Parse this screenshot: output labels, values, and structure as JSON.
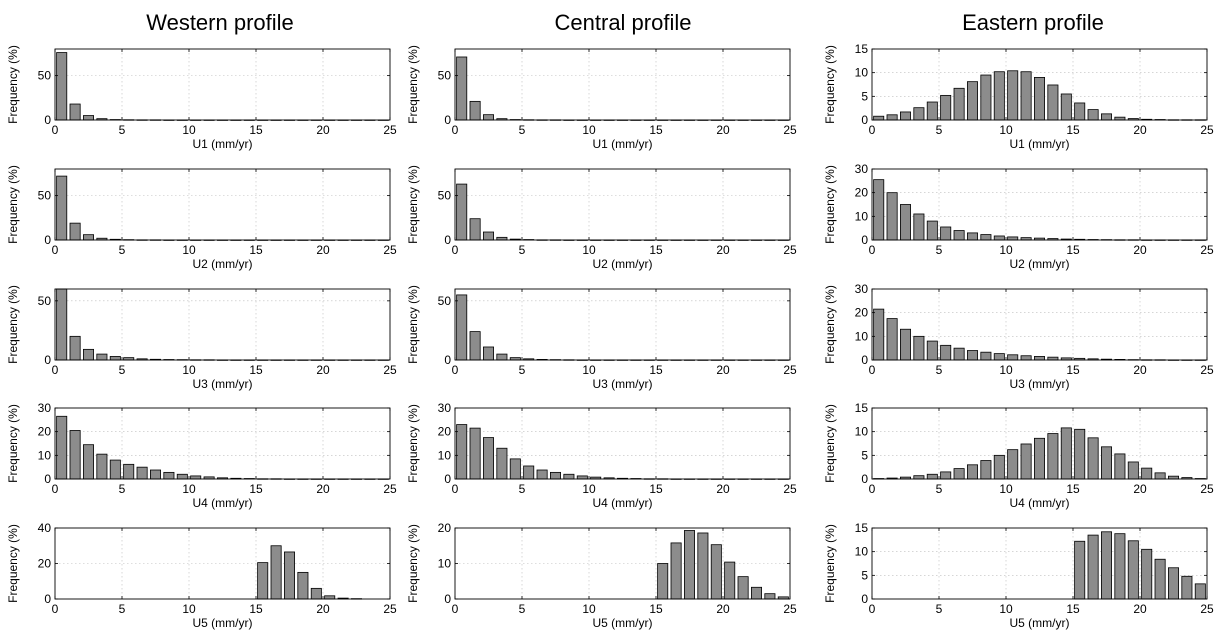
{
  "titles": [
    "Western profile",
    "Central profile",
    "Eastern profile"
  ],
  "chart_data": [
    {
      "type": "bar",
      "profile": "Western profile",
      "xlabel": "U1 (mm/yr)",
      "ylabel": "Frequency (%)",
      "xlim": [
        0,
        25
      ],
      "ylim": [
        0,
        80
      ],
      "yticks": [
        0,
        50
      ],
      "xticks": [
        0,
        5,
        10,
        15,
        20,
        25
      ],
      "grid": true,
      "bin_width": 1,
      "x": [
        0.5,
        1.5,
        2.5,
        3.5,
        4.5,
        5.5,
        6.5,
        7.5,
        8.5,
        9.5,
        10.5,
        11.5,
        12.5,
        13.5,
        14.5,
        15.5,
        16.5,
        17.5,
        18.5,
        19.5,
        20.5,
        21.5,
        22.5,
        23.5,
        24.5
      ],
      "values": [
        76,
        18,
        5,
        1.5,
        0.5,
        0.3,
        0.2,
        0.2,
        0.1,
        0.1,
        0.1,
        0.1,
        0.1,
        0.1,
        0.1,
        0.1,
        0.1,
        0.1,
        0.1,
        0.1,
        0.1,
        0.1,
        0.1,
        0.1,
        0.1
      ]
    },
    {
      "type": "bar",
      "profile": "Central profile",
      "xlabel": "U1 (mm/yr)",
      "ylabel": "Frequency (%)",
      "xlim": [
        0,
        25
      ],
      "ylim": [
        0,
        80
      ],
      "yticks": [
        0,
        50
      ],
      "xticks": [
        0,
        5,
        10,
        15,
        20,
        25
      ],
      "grid": true,
      "bin_width": 1,
      "x": [
        0.5,
        1.5,
        2.5,
        3.5,
        4.5,
        5.5,
        6.5,
        7.5,
        8.5,
        9.5,
        10.5,
        11.5,
        12.5,
        13.5,
        14.5,
        15.5,
        16.5,
        17.5,
        18.5,
        19.5,
        20.5,
        21.5,
        22.5,
        23.5,
        24.5
      ],
      "values": [
        71,
        21,
        6,
        1.5,
        0.5,
        0.3,
        0.2,
        0.2,
        0.1,
        0.1,
        0.1,
        0.1,
        0.1,
        0.1,
        0.1,
        0.1,
        0.1,
        0.1,
        0.1,
        0.1,
        0.1,
        0.1,
        0.1,
        0.1,
        0.1
      ]
    },
    {
      "type": "bar",
      "profile": "Eastern profile",
      "xlabel": "U1 (mm/yr)",
      "ylabel": "Frequency (%)",
      "xlim": [
        0,
        25
      ],
      "ylim": [
        0,
        15
      ],
      "yticks": [
        0,
        5,
        10,
        15
      ],
      "xticks": [
        0,
        5,
        10,
        15,
        20,
        25
      ],
      "grid": true,
      "bin_width": 1,
      "x": [
        0.5,
        1.5,
        2.5,
        3.5,
        4.5,
        5.5,
        6.5,
        7.5,
        8.5,
        9.5,
        10.5,
        11.5,
        12.5,
        13.5,
        14.5,
        15.5,
        16.5,
        17.5,
        18.5,
        19.5,
        20.5,
        21.5,
        22.5,
        23.5,
        24.5
      ],
      "values": [
        0.8,
        1.1,
        1.7,
        2.6,
        3.8,
        5.2,
        6.7,
        8.1,
        9.5,
        10.2,
        10.4,
        10.2,
        9.0,
        7.4,
        5.5,
        3.6,
        2.2,
        1.3,
        0.6,
        0.3,
        0.15,
        0.1,
        0.05,
        0.05,
        0.05
      ]
    },
    {
      "type": "bar",
      "profile": "Western profile",
      "xlabel": "U2 (mm/yr)",
      "ylabel": "Frequency (%)",
      "xlim": [
        0,
        25
      ],
      "ylim": [
        0,
        80
      ],
      "yticks": [
        0,
        50
      ],
      "xticks": [
        0,
        5,
        10,
        15,
        20,
        25
      ],
      "grid": true,
      "bin_width": 1,
      "x": [
        0.5,
        1.5,
        2.5,
        3.5,
        4.5,
        5.5,
        6.5,
        7.5,
        8.5,
        9.5,
        10.5,
        11.5,
        12.5,
        13.5,
        14.5,
        15.5,
        16.5,
        17.5,
        18.5,
        19.5,
        20.5,
        21.5,
        22.5,
        23.5,
        24.5
      ],
      "values": [
        72,
        19,
        6,
        2,
        0.8,
        0.4,
        0.2,
        0.2,
        0.1,
        0.1,
        0.1,
        0.1,
        0.1,
        0.1,
        0.1,
        0.1,
        0.1,
        0.1,
        0.1,
        0.1,
        0.1,
        0.1,
        0.1,
        0.1,
        0.1
      ]
    },
    {
      "type": "bar",
      "profile": "Central profile",
      "xlabel": "U2 (mm/yr)",
      "ylabel": "Frequency (%)",
      "xlim": [
        0,
        25
      ],
      "ylim": [
        0,
        80
      ],
      "yticks": [
        0,
        50
      ],
      "xticks": [
        0,
        5,
        10,
        15,
        20,
        25
      ],
      "grid": true,
      "bin_width": 1,
      "x": [
        0.5,
        1.5,
        2.5,
        3.5,
        4.5,
        5.5,
        6.5,
        7.5,
        8.5,
        9.5,
        10.5,
        11.5,
        12.5,
        13.5,
        14.5,
        15.5,
        16.5,
        17.5,
        18.5,
        19.5,
        20.5,
        21.5,
        22.5,
        23.5,
        24.5
      ],
      "values": [
        63,
        24,
        9,
        3,
        1,
        0.5,
        0.2,
        0.2,
        0.1,
        0.1,
        0.1,
        0.1,
        0.1,
        0.1,
        0.1,
        0.1,
        0.1,
        0.1,
        0.1,
        0.1,
        0.1,
        0.1,
        0.1,
        0.1,
        0.1
      ]
    },
    {
      "type": "bar",
      "profile": "Eastern profile",
      "xlabel": "U2 (mm/yr)",
      "ylabel": "Frequency (%)",
      "xlim": [
        0,
        25
      ],
      "ylim": [
        0,
        30
      ],
      "yticks": [
        0,
        10,
        20,
        30
      ],
      "xticks": [
        0,
        5,
        10,
        15,
        20,
        25
      ],
      "grid": true,
      "bin_width": 1,
      "x": [
        0.5,
        1.5,
        2.5,
        3.5,
        4.5,
        5.5,
        6.5,
        7.5,
        8.5,
        9.5,
        10.5,
        11.5,
        12.5,
        13.5,
        14.5,
        15.5,
        16.5,
        17.5,
        18.5,
        19.5,
        20.5,
        21.5,
        22.5,
        23.5,
        24.5
      ],
      "values": [
        25.5,
        20,
        15,
        11,
        8,
        5.5,
        4,
        3,
        2.3,
        1.7,
        1.3,
        1.0,
        0.8,
        0.6,
        0.4,
        0.3,
        0.2,
        0.15,
        0.1,
        0.1,
        0.05,
        0.05,
        0.05,
        0.05,
        0.05
      ]
    },
    {
      "type": "bar",
      "profile": "Western profile",
      "xlabel": "U3 (mm/yr)",
      "ylabel": "Frequency (%)",
      "xlim": [
        0,
        25
      ],
      "ylim": [
        0,
        60
      ],
      "yticks": [
        0,
        50
      ],
      "xticks": [
        0,
        5,
        10,
        15,
        20,
        25
      ],
      "grid": true,
      "bin_width": 1,
      "x": [
        0.5,
        1.5,
        2.5,
        3.5,
        4.5,
        5.5,
        6.5,
        7.5,
        8.5,
        9.5,
        10.5,
        11.5,
        12.5,
        13.5,
        14.5,
        15.5,
        16.5,
        17.5,
        18.5,
        19.5,
        20.5,
        21.5,
        22.5,
        23.5,
        24.5
      ],
      "values": [
        60,
        20,
        9,
        5,
        3,
        2,
        1,
        0.6,
        0.4,
        0.3,
        0.2,
        0.2,
        0.1,
        0.1,
        0.1,
        0.1,
        0.1,
        0.1,
        0.1,
        0.1,
        0.1,
        0.1,
        0.1,
        0.1,
        0.1
      ]
    },
    {
      "type": "bar",
      "profile": "Central profile",
      "xlabel": "U3 (mm/yr)",
      "ylabel": "Frequency (%)",
      "xlim": [
        0,
        25
      ],
      "ylim": [
        0,
        60
      ],
      "yticks": [
        0,
        50
      ],
      "xticks": [
        0,
        5,
        10,
        15,
        20,
        25
      ],
      "grid": true,
      "bin_width": 1,
      "x": [
        0.5,
        1.5,
        2.5,
        3.5,
        4.5,
        5.5,
        6.5,
        7.5,
        8.5,
        9.5,
        10.5,
        11.5,
        12.5,
        13.5,
        14.5,
        15.5,
        16.5,
        17.5,
        18.5,
        19.5,
        20.5,
        21.5,
        22.5,
        23.5,
        24.5
      ],
      "values": [
        55,
        24,
        11,
        5,
        2,
        1,
        0.5,
        0.3,
        0.2,
        0.1,
        0.1,
        0.1,
        0.1,
        0.1,
        0.1,
        0.1,
        0.1,
        0.1,
        0.1,
        0.1,
        0.1,
        0.1,
        0.1,
        0.1,
        0.1
      ]
    },
    {
      "type": "bar",
      "profile": "Eastern profile",
      "xlabel": "U3 (mm/yr)",
      "ylabel": "Frequency (%)",
      "xlim": [
        0,
        25
      ],
      "ylim": [
        0,
        30
      ],
      "yticks": [
        0,
        10,
        20,
        30
      ],
      "xticks": [
        0,
        5,
        10,
        15,
        20,
        25
      ],
      "grid": true,
      "bin_width": 1,
      "x": [
        0.5,
        1.5,
        2.5,
        3.5,
        4.5,
        5.5,
        6.5,
        7.5,
        8.5,
        9.5,
        10.5,
        11.5,
        12.5,
        13.5,
        14.5,
        15.5,
        16.5,
        17.5,
        18.5,
        19.5,
        20.5,
        21.5,
        22.5,
        23.5,
        24.5
      ],
      "values": [
        21.5,
        17.5,
        13,
        10,
        8,
        6.2,
        5,
        4,
        3.3,
        2.7,
        2.2,
        1.8,
        1.5,
        1.2,
        0.9,
        0.7,
        0.5,
        0.35,
        0.25,
        0.15,
        0.1,
        0.1,
        0.05,
        0.05,
        0.05
      ]
    },
    {
      "type": "bar",
      "profile": "Western profile",
      "xlabel": "U4 (mm/yr)",
      "ylabel": "Frequency (%)",
      "xlim": [
        0,
        25
      ],
      "ylim": [
        0,
        30
      ],
      "yticks": [
        0,
        10,
        20,
        30
      ],
      "xticks": [
        0,
        5,
        10,
        15,
        20,
        25
      ],
      "grid": true,
      "bin_width": 1,
      "x": [
        0.5,
        1.5,
        2.5,
        3.5,
        4.5,
        5.5,
        6.5,
        7.5,
        8.5,
        9.5,
        10.5,
        11.5,
        12.5,
        13.5,
        14.5,
        15.5,
        16.5,
        17.5,
        18.5,
        19.5,
        20.5,
        21.5,
        22.5,
        23.5,
        24.5
      ],
      "values": [
        26.5,
        20.5,
        14.5,
        10.5,
        8,
        6.2,
        5,
        3.8,
        2.8,
        2,
        1.3,
        0.9,
        0.5,
        0.3,
        0.2,
        0.1,
        0.1,
        0.05,
        0.05,
        0.05,
        0.05,
        0.05,
        0.05,
        0.05,
        0.05
      ]
    },
    {
      "type": "bar",
      "profile": "Central profile",
      "xlabel": "U4 (mm/yr)",
      "ylabel": "Frequency (%)",
      "xlim": [
        0,
        25
      ],
      "ylim": [
        0,
        30
      ],
      "yticks": [
        0,
        10,
        20,
        30
      ],
      "xticks": [
        0,
        5,
        10,
        15,
        20,
        25
      ],
      "grid": true,
      "bin_width": 1,
      "x": [
        0.5,
        1.5,
        2.5,
        3.5,
        4.5,
        5.5,
        6.5,
        7.5,
        8.5,
        9.5,
        10.5,
        11.5,
        12.5,
        13.5,
        14.5,
        15.5,
        16.5,
        17.5,
        18.5,
        19.5,
        20.5,
        21.5,
        22.5,
        23.5,
        24.5
      ],
      "values": [
        23,
        21.5,
        17.5,
        13,
        8.5,
        5.5,
        3.8,
        2.8,
        2,
        1.3,
        0.8,
        0.5,
        0.3,
        0.2,
        0.1,
        0.1,
        0.05,
        0.05,
        0.05,
        0.05,
        0.05,
        0.05,
        0.05,
        0.05,
        0.05
      ]
    },
    {
      "type": "bar",
      "profile": "Eastern profile",
      "xlabel": "U4 (mm/yr)",
      "ylabel": "Frequency (%)",
      "xlim": [
        0,
        25
      ],
      "ylim": [
        0,
        15
      ],
      "yticks": [
        0,
        5,
        10,
        15
      ],
      "xticks": [
        0,
        5,
        10,
        15,
        20,
        25
      ],
      "grid": true,
      "bin_width": 1,
      "x": [
        0.5,
        1.5,
        2.5,
        3.5,
        4.5,
        5.5,
        6.5,
        7.5,
        8.5,
        9.5,
        10.5,
        11.5,
        12.5,
        13.5,
        14.5,
        15.5,
        16.5,
        17.5,
        18.5,
        19.5,
        20.5,
        21.5,
        22.5,
        23.5,
        24.5
      ],
      "values": [
        0.1,
        0.2,
        0.4,
        0.7,
        1.0,
        1.5,
        2.2,
        3.0,
        3.9,
        5.0,
        6.2,
        7.4,
        8.6,
        9.6,
        10.8,
        10.5,
        8.7,
        6.8,
        5.3,
        3.6,
        2.3,
        1.3,
        0.6,
        0.3,
        0.1
      ]
    },
    {
      "type": "bar",
      "profile": "Western profile",
      "xlabel": "U5 (mm/yr)",
      "ylabel": "Frequency (%)",
      "xlim": [
        0,
        25
      ],
      "ylim": [
        0,
        40
      ],
      "yticks": [
        0,
        20,
        40
      ],
      "xticks": [
        0,
        5,
        10,
        15,
        20,
        25
      ],
      "grid": true,
      "bin_width": 1,
      "x": [
        0.5,
        1.5,
        2.5,
        3.5,
        4.5,
        5.5,
        6.5,
        7.5,
        8.5,
        9.5,
        10.5,
        11.5,
        12.5,
        13.5,
        14.5,
        15.5,
        16.5,
        17.5,
        18.5,
        19.5,
        20.5,
        21.5,
        22.5,
        23.5,
        24.5
      ],
      "values": [
        0,
        0,
        0,
        0,
        0,
        0,
        0,
        0,
        0,
        0,
        0,
        0,
        0,
        0,
        0,
        20.5,
        30,
        26.5,
        15,
        6,
        1.8,
        0.5,
        0.2,
        0,
        0
      ]
    },
    {
      "type": "bar",
      "profile": "Central profile",
      "xlabel": "U5 (mm/yr)",
      "ylabel": "Frequency (%)",
      "xlim": [
        0,
        25
      ],
      "ylim": [
        0,
        20
      ],
      "yticks": [
        0,
        10,
        20
      ],
      "xticks": [
        0,
        5,
        10,
        15,
        20,
        25
      ],
      "grid": true,
      "bin_width": 1,
      "x": [
        0.5,
        1.5,
        2.5,
        3.5,
        4.5,
        5.5,
        6.5,
        7.5,
        8.5,
        9.5,
        10.5,
        11.5,
        12.5,
        13.5,
        14.5,
        15.5,
        16.5,
        17.5,
        18.5,
        19.5,
        20.5,
        21.5,
        22.5,
        23.5,
        24.5
      ],
      "values": [
        0,
        0,
        0,
        0,
        0,
        0,
        0,
        0,
        0,
        0,
        0,
        0,
        0,
        0,
        0,
        10,
        15.8,
        19.3,
        18.6,
        15.3,
        10.4,
        6.3,
        3.3,
        1.5,
        0.6
      ]
    },
    {
      "type": "bar",
      "profile": "Eastern profile",
      "xlabel": "U5 (mm/yr)",
      "ylabel": "Frequency (%)",
      "xlim": [
        0,
        25
      ],
      "ylim": [
        0,
        15
      ],
      "yticks": [
        0,
        5,
        10,
        15
      ],
      "xticks": [
        0,
        5,
        10,
        15,
        20,
        25
      ],
      "grid": true,
      "bin_width": 1,
      "x": [
        0.5,
        1.5,
        2.5,
        3.5,
        4.5,
        5.5,
        6.5,
        7.5,
        8.5,
        9.5,
        10.5,
        11.5,
        12.5,
        13.5,
        14.5,
        15.5,
        16.5,
        17.5,
        18.5,
        19.5,
        20.5,
        21.5,
        22.5,
        23.5,
        24.5
      ],
      "values": [
        0,
        0,
        0,
        0,
        0,
        0,
        0,
        0,
        0,
        0,
        0,
        0,
        0,
        0,
        0,
        12.2,
        13.5,
        14.2,
        13.8,
        12.3,
        10.5,
        8.4,
        6.6,
        4.8,
        3.2
      ]
    }
  ]
}
